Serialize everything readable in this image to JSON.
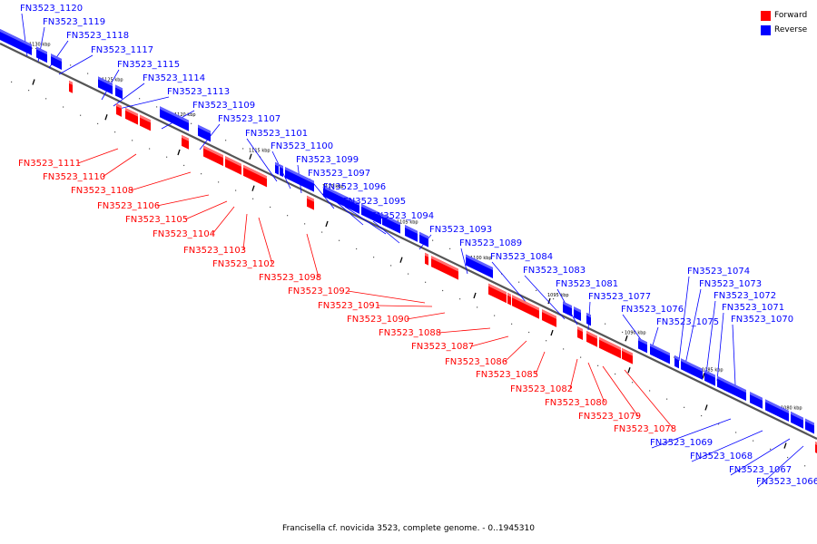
{
  "caption": "Francisella cf. novicida 3523, complete genome. - 0..1945310",
  "legend": {
    "forward": {
      "label": "Forward",
      "color": "#ff0000"
    },
    "reverse": {
      "label": "Reverse",
      "color": "#0000ff"
    }
  },
  "ticks": [
    "1130 kbp",
    "1125 kbp",
    "1120 kbp",
    "1115 kbp",
    "1110 kbp",
    "1105 kbp",
    "1100 kbp",
    "1095 kbp",
    "1090 kbp",
    "1085 kbp",
    "1080 kbp"
  ],
  "reverse_genes": [
    "FN3523_1120",
    "FN3523_1119",
    "FN3523_1118",
    "FN3523_1117",
    "FN3523_1115",
    "FN3523_1114",
    "FN3523_1113",
    "FN3523_1109",
    "FN3523_1107",
    "FN3523_1101",
    "FN3523_1100",
    "FN3523_1099",
    "FN3523_1097",
    "FN3523_1096",
    "FN3523_1095",
    "FN3523_1094",
    "FN3523_1093",
    "FN3523_1089",
    "FN3523_1084",
    "FN3523_1083",
    "FN3523_1081",
    "FN3523_1077",
    "FN3523_1076",
    "FN3523_1075",
    "FN3523_1074",
    "FN3523_1073",
    "FN3523_1072",
    "FN3523_1071",
    "FN3523_1070",
    "FN3523_1069",
    "FN3523_1068",
    "FN3523_1067",
    "FN3523_1066"
  ],
  "forward_genes": [
    "FN3523_1111",
    "FN3523_1110",
    "FN3523_1108",
    "FN3523_1106",
    "FN3523_1105",
    "FN3523_1104",
    "FN3523_1103",
    "FN3523_1102",
    "FN3523_1098",
    "FN3523_1092",
    "FN3523_1091",
    "FN3523_1090",
    "FN3523_1088",
    "FN3523_1087",
    "FN3523_1086",
    "FN3523_1085",
    "FN3523_1082",
    "FN3523_1080",
    "FN3523_1079",
    "FN3523_1078"
  ]
}
